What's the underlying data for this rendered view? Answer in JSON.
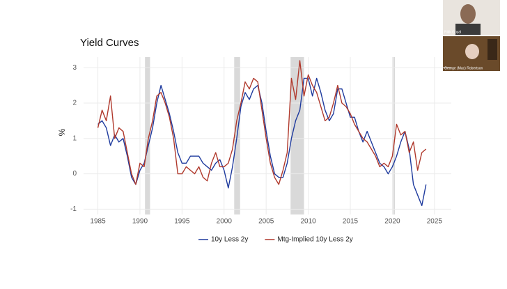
{
  "chart_data": {
    "type": "line",
    "title": "Yield Curves",
    "y_label": "%",
    "x": [
      1985,
      1985.5,
      1986,
      1986.5,
      1987,
      1987.5,
      1988,
      1988.5,
      1989,
      1989.5,
      1990,
      1990.5,
      1991,
      1991.5,
      1992,
      1992.5,
      1993,
      1993.5,
      1994,
      1994.5,
      1995,
      1995.5,
      1996,
      1996.5,
      1997,
      1997.5,
      1998,
      1998.5,
      1999,
      1999.5,
      2000,
      2000.5,
      2001,
      2001.5,
      2002,
      2002.5,
      2003,
      2003.5,
      2004,
      2004.5,
      2005,
      2005.5,
      2006,
      2006.5,
      2007,
      2007.5,
      2008,
      2008.5,
      2009,
      2009.5,
      2010,
      2010.5,
      2011,
      2011.5,
      2012,
      2012.5,
      2013,
      2013.5,
      2014,
      2014.5,
      2015,
      2015.5,
      2016,
      2016.5,
      2017,
      2017.5,
      2018,
      2018.5,
      2019,
      2019.5,
      2020,
      2020.5,
      2021,
      2021.5,
      2022,
      2022.5,
      2023,
      2023.5,
      2024
    ],
    "series": [
      {
        "name": "10y Less 2y",
        "color": "#1f3b9e",
        "values": [
          1.4,
          1.5,
          1.3,
          0.8,
          1.1,
          0.9,
          1.0,
          0.5,
          -0.1,
          -0.3,
          0.1,
          0.3,
          0.8,
          1.3,
          2.0,
          2.5,
          2.1,
          1.7,
          1.2,
          0.6,
          0.3,
          0.3,
          0.5,
          0.5,
          0.5,
          0.3,
          0.2,
          0.1,
          0.3,
          0.4,
          0.1,
          -0.4,
          0.2,
          1.0,
          1.9,
          2.3,
          2.1,
          2.4,
          2.5,
          2.0,
          1.2,
          0.5,
          0.0,
          -0.1,
          -0.1,
          0.3,
          1.0,
          1.5,
          1.8,
          2.7,
          2.7,
          2.2,
          2.7,
          2.3,
          1.8,
          1.5,
          1.7,
          2.4,
          2.4,
          2.0,
          1.6,
          1.6,
          1.2,
          0.9,
          1.2,
          0.9,
          0.6,
          0.3,
          0.2,
          0.0,
          0.2,
          0.5,
          0.9,
          1.2,
          0.7,
          -0.3,
          -0.6,
          -0.9,
          -0.3
        ]
      },
      {
        "name": "Mtg-Implied 10y Less 2y",
        "color": "#b0392c",
        "values": [
          1.3,
          1.8,
          1.5,
          2.2,
          1.0,
          1.3,
          1.2,
          0.6,
          0.0,
          -0.3,
          0.3,
          0.2,
          1.0,
          1.5,
          2.2,
          2.3,
          2.0,
          1.6,
          1.0,
          0.0,
          0.0,
          0.2,
          0.1,
          0.0,
          0.2,
          -0.1,
          -0.2,
          0.3,
          0.6,
          0.2,
          0.2,
          0.3,
          0.7,
          1.5,
          2.0,
          2.6,
          2.4,
          2.7,
          2.6,
          1.8,
          1.0,
          0.3,
          -0.1,
          -0.3,
          0.1,
          0.6,
          2.7,
          2.1,
          3.2,
          2.2,
          2.8,
          2.5,
          2.3,
          1.9,
          1.5,
          1.6,
          2.0,
          2.5,
          2.0,
          1.9,
          1.7,
          1.4,
          1.2,
          1.0,
          0.9,
          0.7,
          0.5,
          0.2,
          0.3,
          0.2,
          0.5,
          1.4,
          1.1,
          1.2,
          0.6,
          0.9,
          0.1,
          0.6,
          0.7
        ]
      }
    ],
    "recessions": [
      [
        1990.6,
        1991.2
      ],
      [
        2001.2,
        2001.9
      ],
      [
        2007.9,
        2009.5
      ],
      [
        2020.1,
        2020.3
      ]
    ],
    "xlim": [
      1983.3,
      2027
    ],
    "xticks": [
      1985,
      1990,
      1995,
      2000,
      2005,
      2010,
      2015,
      2020,
      2025
    ],
    "ylim": [
      -1.15,
      3.3
    ],
    "yticks": [
      -1,
      0,
      1,
      2,
      3
    ],
    "grid": true,
    "legend": "bottom"
  },
  "participants": [
    {
      "name": "Ritik Goyal"
    },
    {
      "name": "George (Mac) Robertson"
    }
  ]
}
